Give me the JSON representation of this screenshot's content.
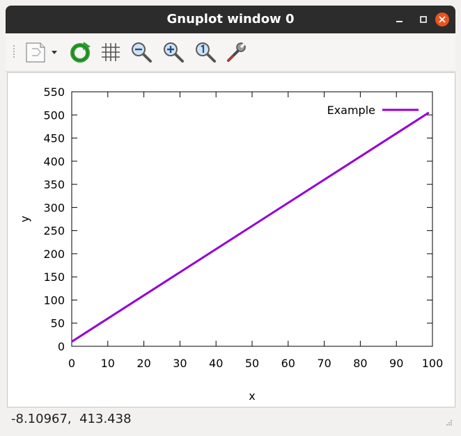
{
  "window": {
    "title": "Gnuplot window 0"
  },
  "toolbar": {
    "items": [
      {
        "name": "export-menu-icon"
      },
      {
        "name": "replot-icon"
      },
      {
        "name": "grid-icon"
      },
      {
        "name": "zoom-out-icon"
      },
      {
        "name": "zoom-in-icon"
      },
      {
        "name": "zoom-reset-icon"
      },
      {
        "name": "settings-wrench-icon"
      }
    ]
  },
  "colors": {
    "series": "#9400d3",
    "close_button": "#e95420",
    "titlebar": "#2c2c2c"
  },
  "status": {
    "coordinates": "-8.10967,  413.438"
  },
  "chart_data": {
    "type": "line",
    "title": "",
    "xlabel": "x",
    "ylabel": "y",
    "xlim": [
      0,
      100
    ],
    "ylim": [
      0,
      550
    ],
    "xticks": [
      0,
      10,
      20,
      30,
      40,
      50,
      60,
      70,
      80,
      90,
      100
    ],
    "yticks": [
      0,
      50,
      100,
      150,
      200,
      250,
      300,
      350,
      400,
      450,
      500,
      550
    ],
    "grid": false,
    "legend": "top-right",
    "series": [
      {
        "name": "Example",
        "x": [
          0,
          99
        ],
        "y": [
          10,
          505
        ]
      }
    ]
  }
}
